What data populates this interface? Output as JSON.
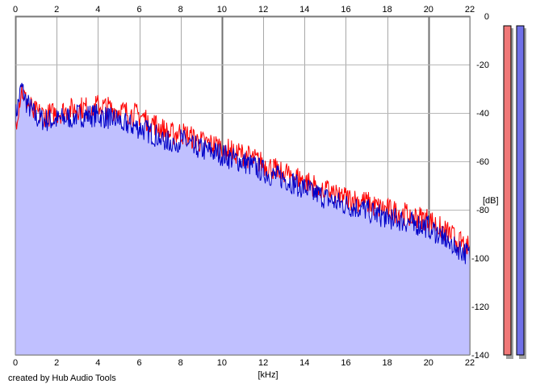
{
  "chart_data": {
    "type": "area",
    "xlabel": "[kHz]",
    "ylabel": "[dB]",
    "xlim": [
      0,
      22
    ],
    "ylim": [
      -140,
      0
    ],
    "x_ticks": [
      "0",
      "2",
      "4",
      "6",
      "8",
      "10",
      "12",
      "14",
      "16",
      "18",
      "20",
      "22"
    ],
    "y_ticks": [
      "0",
      "-20",
      "-40",
      "-60",
      "-80",
      "-100",
      "-120",
      "-140"
    ],
    "grid": true,
    "series": [
      {
        "color": "#ff0000",
        "x": [
          0,
          0.3,
          0.5,
          1,
          1.5,
          2,
          2.5,
          3,
          3.5,
          4,
          4.5,
          5,
          5.5,
          6,
          6.5,
          7,
          7.5,
          8,
          8.5,
          9,
          9.5,
          10,
          10.5,
          11,
          11.5,
          12,
          12.5,
          13,
          13.5,
          14,
          14.5,
          15,
          15.5,
          16,
          16.5,
          17,
          17.5,
          18,
          18.5,
          19,
          19.5,
          20,
          20.5,
          21,
          21.5,
          22
        ],
        "values": [
          -45,
          -30,
          -35,
          -40,
          -41,
          -40,
          -39,
          -38,
          -38,
          -37,
          -38,
          -39,
          -40,
          -41,
          -43,
          -46,
          -49,
          -48,
          -50,
          -52,
          -53,
          -54,
          -56,
          -57,
          -59,
          -61,
          -63,
          -64,
          -66,
          -68,
          -70,
          -72,
          -73,
          -75,
          -76,
          -77,
          -79,
          -80,
          -81,
          -82,
          -83,
          -84,
          -87,
          -90,
          -93,
          -96
        ]
      },
      {
        "color": "#0000c8",
        "fill": "#c0c0ff",
        "x": [
          0,
          0.3,
          0.5,
          1,
          1.5,
          2,
          2.5,
          3,
          3.5,
          4,
          4.5,
          5,
          5.5,
          6,
          6.5,
          7,
          7.5,
          8,
          8.5,
          9,
          9.5,
          10,
          10.5,
          11,
          11.5,
          12,
          12.5,
          13,
          13.5,
          14,
          14.5,
          15,
          15.5,
          16,
          16.5,
          17,
          17.5,
          18,
          18.5,
          19,
          19.5,
          20,
          20.5,
          21,
          21.5,
          22
        ],
        "values": [
          -42,
          -29,
          -35,
          -42,
          -43,
          -43,
          -42,
          -41,
          -41,
          -41,
          -42,
          -43,
          -45,
          -46,
          -48,
          -50,
          -52,
          -51,
          -53,
          -55,
          -56,
          -57,
          -59,
          -60,
          -62,
          -64,
          -66,
          -67,
          -69,
          -71,
          -73,
          -75,
          -77,
          -78,
          -79,
          -80,
          -82,
          -83,
          -84,
          -85,
          -86,
          -87,
          -90,
          -93,
          -96,
          -99
        ]
      }
    ]
  },
  "meters": {
    "left_color": "#f07878",
    "right_color": "#7070e8"
  },
  "caption": "created by Hub Audio Tools"
}
